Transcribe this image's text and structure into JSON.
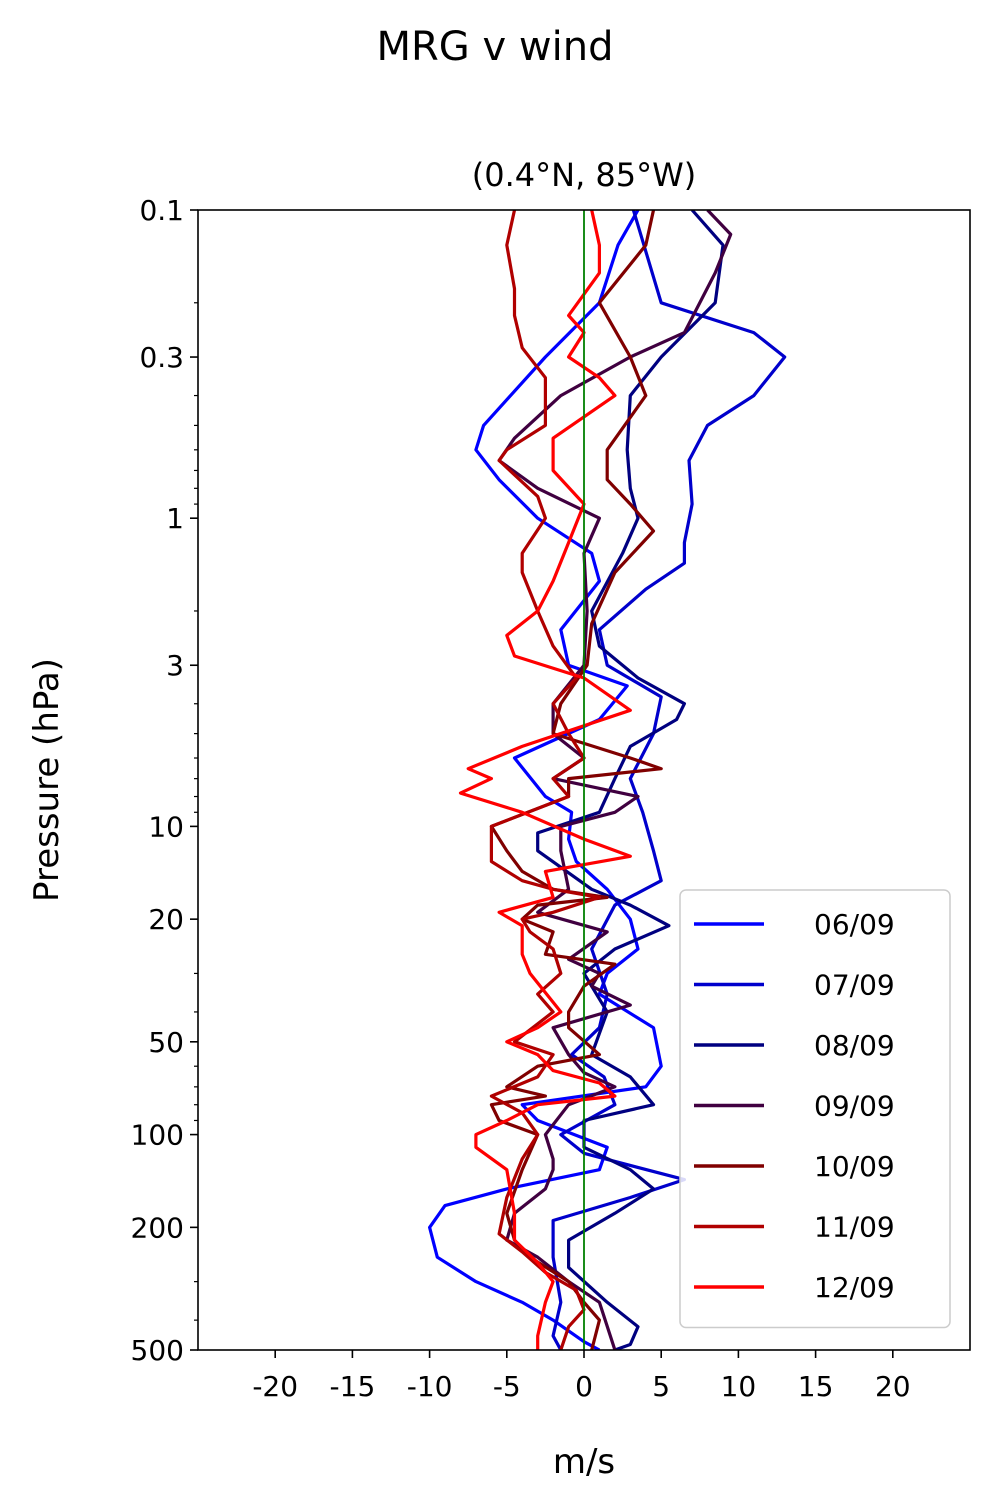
{
  "chart_data": {
    "type": "line",
    "title": "MRG v wind",
    "subtitle": "(0.4°N, 85°W)",
    "xlabel": "m/s",
    "ylabel": "Pressure (hPa)",
    "xlim": [
      -25,
      25
    ],
    "ylim": [
      500,
      0.1
    ],
    "yscale": "log",
    "x_ticks": [
      -20,
      -15,
      -10,
      -5,
      0,
      5,
      10,
      15,
      20
    ],
    "x_tick_labels": [
      "-20",
      "-15",
      "-10",
      "-5",
      "0",
      "5",
      "10",
      "15",
      "20"
    ],
    "y_ticks": [
      0.1,
      0.3,
      1,
      3,
      10,
      20,
      50,
      100,
      200,
      500
    ],
    "y_tick_labels": [
      "0.1",
      "0.3",
      "1",
      "3",
      "10",
      "20",
      "50",
      "100",
      "200",
      "500"
    ],
    "grid": false,
    "legend": "lower-right",
    "reference_line": {
      "x": 0,
      "color": "#008000"
    },
    "series": [
      {
        "name": "06/09",
        "color": "#0000ff",
        "points": [
          [
            3.5,
            0.1
          ],
          [
            2.2,
            0.13
          ],
          [
            1,
            0.2
          ],
          [
            -2.5,
            0.3
          ],
          [
            -6.5,
            0.5
          ],
          [
            -7,
            0.6
          ],
          [
            -5.5,
            0.75
          ],
          [
            -3,
            1
          ],
          [
            0.5,
            1.3
          ],
          [
            1,
            1.6
          ],
          [
            -1.5,
            2.3
          ],
          [
            -1,
            3
          ],
          [
            2.8,
            3.5
          ],
          [
            1,
            4.5
          ],
          [
            -4.5,
            6
          ],
          [
            -2.5,
            8
          ],
          [
            -0.8,
            9
          ],
          [
            -1,
            11
          ],
          [
            -0.5,
            13
          ],
          [
            1.5,
            16
          ],
          [
            3,
            20
          ],
          [
            3.5,
            25
          ],
          [
            1.5,
            30
          ],
          [
            1,
            35
          ],
          [
            4.5,
            45
          ],
          [
            5,
            60
          ],
          [
            4,
            70
          ],
          [
            -4,
            80
          ],
          [
            -3,
            90
          ],
          [
            1.5,
            110
          ],
          [
            1,
            130
          ],
          [
            -5,
            150
          ],
          [
            -9,
            170
          ],
          [
            -10,
            200
          ],
          [
            -9.5,
            250
          ],
          [
            -7,
            300
          ],
          [
            -4,
            350
          ],
          [
            -2,
            400
          ],
          [
            0,
            470
          ],
          [
            1,
            500
          ]
        ]
      },
      {
        "name": "07/09",
        "color": "#0000cc",
        "points": [
          [
            3.2,
            0.1
          ],
          [
            5,
            0.2
          ],
          [
            11,
            0.25
          ],
          [
            13,
            0.3
          ],
          [
            11,
            0.4
          ],
          [
            8,
            0.5
          ],
          [
            6.8,
            0.65
          ],
          [
            7,
            0.9
          ],
          [
            6.5,
            1.2
          ],
          [
            6.5,
            1.4
          ],
          [
            4,
            1.7
          ],
          [
            1,
            2.3
          ],
          [
            1.5,
            3
          ],
          [
            5,
            3.8
          ],
          [
            4.5,
            5
          ],
          [
            3,
            7
          ],
          [
            3.8,
            9
          ],
          [
            4.5,
            12
          ],
          [
            5,
            15
          ],
          [
            2,
            18
          ],
          [
            0.5,
            25
          ],
          [
            1.5,
            35
          ],
          [
            1,
            45
          ],
          [
            -0.8,
            55
          ],
          [
            1.3,
            65
          ],
          [
            2,
            80
          ],
          [
            -1.5,
            100
          ],
          [
            0,
            115
          ],
          [
            6.5,
            140
          ],
          [
            3,
            160
          ],
          [
            -2,
            190
          ],
          [
            -2,
            250
          ],
          [
            -1.5,
            350
          ],
          [
            -2,
            450
          ],
          [
            -1.5,
            500
          ]
        ]
      },
      {
        "name": "08/09",
        "color": "#000080",
        "points": [
          [
            7,
            0.1
          ],
          [
            9,
            0.13
          ],
          [
            8.5,
            0.2
          ],
          [
            5,
            0.3
          ],
          [
            3,
            0.4
          ],
          [
            2.8,
            0.6
          ],
          [
            3,
            0.8
          ],
          [
            3.5,
            1
          ],
          [
            2.5,
            1.3
          ],
          [
            0.5,
            2
          ],
          [
            1,
            2.6
          ],
          [
            3.5,
            3.3
          ],
          [
            6.5,
            4
          ],
          [
            6,
            4.5
          ],
          [
            3,
            5.5
          ],
          [
            2,
            7
          ],
          [
            1,
            9
          ],
          [
            -3,
            10.5
          ],
          [
            -3,
            12
          ],
          [
            0.5,
            16
          ],
          [
            3,
            18
          ],
          [
            5.5,
            21
          ],
          [
            2,
            25
          ],
          [
            0,
            30
          ],
          [
            1.5,
            40
          ],
          [
            0.5,
            55
          ],
          [
            3,
            65
          ],
          [
            4.5,
            80
          ],
          [
            0,
            90
          ],
          [
            0,
            110
          ],
          [
            3,
            130
          ],
          [
            4.5,
            150
          ],
          [
            2,
            180
          ],
          [
            -1,
            220
          ],
          [
            -1,
            270
          ],
          [
            1.5,
            350
          ],
          [
            3.5,
            420
          ],
          [
            3,
            480
          ],
          [
            2,
            500
          ]
        ]
      },
      {
        "name": "09/09",
        "color": "#400040",
        "points": [
          [
            8,
            0.1
          ],
          [
            9.5,
            0.12
          ],
          [
            8.5,
            0.16
          ],
          [
            6.5,
            0.25
          ],
          [
            3,
            0.3
          ],
          [
            -1.5,
            0.4
          ],
          [
            -4.5,
            0.55
          ],
          [
            -5.5,
            0.65
          ],
          [
            -3,
            0.8
          ],
          [
            1,
            1
          ],
          [
            0,
            1.3
          ],
          [
            0.2,
            2
          ],
          [
            0,
            3
          ],
          [
            -2,
            4
          ],
          [
            -2,
            5
          ],
          [
            0,
            6
          ],
          [
            -2,
            7
          ],
          [
            3.5,
            8
          ],
          [
            2,
            9
          ],
          [
            -1.5,
            10
          ],
          [
            -1.5,
            12
          ],
          [
            -1,
            16
          ],
          [
            -3,
            19
          ],
          [
            1.5,
            22
          ],
          [
            -1,
            27
          ],
          [
            1,
            30
          ],
          [
            0.5,
            33
          ],
          [
            3,
            38
          ],
          [
            -2,
            45
          ],
          [
            -1,
            55
          ],
          [
            0,
            63
          ],
          [
            2,
            70
          ],
          [
            -1,
            80
          ],
          [
            -2.5,
            100
          ],
          [
            -2,
            120
          ],
          [
            -2,
            130
          ],
          [
            -2.5,
            150
          ],
          [
            -4.5,
            180
          ],
          [
            -5,
            220
          ],
          [
            -3,
            250
          ],
          [
            -1,
            300
          ],
          [
            1,
            350
          ],
          [
            2,
            500
          ]
        ]
      },
      {
        "name": "10/09",
        "color": "#800000",
        "points": [
          [
            4.5,
            0.1
          ],
          [
            4,
            0.13
          ],
          [
            1,
            0.2
          ],
          [
            3,
            0.3
          ],
          [
            4,
            0.4
          ],
          [
            1.5,
            0.6
          ],
          [
            1.5,
            0.75
          ],
          [
            3,
            0.9
          ],
          [
            4.5,
            1.1
          ],
          [
            2,
            1.5
          ],
          [
            0.5,
            2.2
          ],
          [
            0.2,
            3
          ],
          [
            -1.5,
            4
          ],
          [
            -2,
            5
          ],
          [
            3,
            6
          ],
          [
            5,
            6.5
          ],
          [
            -1,
            7
          ],
          [
            -1,
            8
          ],
          [
            -6,
            10
          ],
          [
            -5,
            12
          ],
          [
            -4,
            14
          ],
          [
            -2,
            16
          ],
          [
            1.5,
            17
          ],
          [
            -3,
            18
          ],
          [
            -4,
            20
          ],
          [
            -2,
            22
          ],
          [
            -2.5,
            26
          ],
          [
            2,
            28
          ],
          [
            0,
            33
          ],
          [
            -1,
            40
          ],
          [
            -1,
            45
          ],
          [
            1,
            55
          ],
          [
            -3,
            60
          ],
          [
            -5,
            70
          ],
          [
            -2.5,
            75
          ],
          [
            -6,
            80
          ],
          [
            -5.5,
            90
          ],
          [
            -3,
            100
          ],
          [
            -4,
            130
          ],
          [
            -5,
            180
          ],
          [
            -4.5,
            220
          ],
          [
            -3.5,
            250
          ],
          [
            -1,
            300
          ],
          [
            0,
            350
          ],
          [
            1,
            400
          ],
          [
            0.5,
            500
          ]
        ]
      },
      {
        "name": "11/09",
        "color": "#b00000",
        "points": [
          [
            -4.5,
            0.1
          ],
          [
            -5,
            0.13
          ],
          [
            -4.5,
            0.18
          ],
          [
            -4.5,
            0.22
          ],
          [
            -4,
            0.28
          ],
          [
            -2.5,
            0.35
          ],
          [
            -2.5,
            0.5
          ],
          [
            -5,
            0.6
          ],
          [
            -5.5,
            0.65
          ],
          [
            -3,
            0.85
          ],
          [
            -2.5,
            1
          ],
          [
            -4,
            1.3
          ],
          [
            -4,
            1.5
          ],
          [
            -3,
            2
          ],
          [
            -2,
            2.6
          ],
          [
            -0.5,
            3.3
          ],
          [
            -2,
            4
          ],
          [
            -1,
            5
          ],
          [
            0,
            6
          ],
          [
            -2,
            7
          ],
          [
            -1,
            8
          ],
          [
            -6,
            10
          ],
          [
            -6,
            13
          ],
          [
            -4,
            15
          ],
          [
            -2,
            16
          ],
          [
            1,
            17
          ],
          [
            -2,
            19
          ],
          [
            -4,
            20
          ],
          [
            -3.5,
            22
          ],
          [
            -2,
            25
          ],
          [
            -1.5,
            30
          ],
          [
            -3,
            35
          ],
          [
            -2,
            40
          ],
          [
            -4.5,
            50
          ],
          [
            -2,
            55
          ],
          [
            -3,
            65
          ],
          [
            -6,
            75
          ],
          [
            -4,
            85
          ],
          [
            -3,
            100
          ],
          [
            -4,
            120
          ],
          [
            -5,
            160
          ],
          [
            -5.5,
            210
          ],
          [
            -4,
            240
          ],
          [
            -2.5,
            280
          ],
          [
            -0.5,
            320
          ],
          [
            0,
            370
          ],
          [
            -1,
            420
          ],
          [
            -1.5,
            500
          ]
        ]
      },
      {
        "name": "12/09",
        "color": "#ff0000",
        "points": [
          [
            0.5,
            0.1
          ],
          [
            1,
            0.13
          ],
          [
            1,
            0.16
          ],
          [
            -1,
            0.22
          ],
          [
            0,
            0.25
          ],
          [
            -1,
            0.3
          ],
          [
            1,
            0.35
          ],
          [
            2,
            0.4
          ],
          [
            -2,
            0.55
          ],
          [
            -2,
            0.7
          ],
          [
            0,
            0.9
          ],
          [
            -1,
            1.2
          ],
          [
            -2,
            1.6
          ],
          [
            -3,
            2
          ],
          [
            -5,
            2.4
          ],
          [
            -4.5,
            2.8
          ],
          [
            0,
            3.3
          ],
          [
            3,
            4.2
          ],
          [
            -4,
            5.5
          ],
          [
            -7.5,
            6.5
          ],
          [
            -6,
            7
          ],
          [
            -8,
            7.8
          ],
          [
            -4,
            9
          ],
          [
            0,
            11
          ],
          [
            3,
            12.5
          ],
          [
            -2.5,
            14
          ],
          [
            -2,
            17
          ],
          [
            -5.5,
            19
          ],
          [
            -4,
            21
          ],
          [
            -4,
            26
          ],
          [
            -3.5,
            30
          ],
          [
            -1.5,
            40
          ],
          [
            -3,
            45
          ],
          [
            -5,
            50
          ],
          [
            -3,
            55
          ],
          [
            -2,
            62
          ],
          [
            1,
            68
          ],
          [
            2,
            75
          ],
          [
            -3,
            80
          ],
          [
            -5,
            90
          ],
          [
            -7,
            100
          ],
          [
            -7,
            110
          ],
          [
            -5,
            130
          ],
          [
            -4.5,
            180
          ],
          [
            -4.5,
            220
          ],
          [
            -3,
            260
          ],
          [
            -2,
            300
          ],
          [
            -2.5,
            350
          ],
          [
            -3,
            450
          ],
          [
            -3,
            500
          ]
        ]
      }
    ]
  }
}
